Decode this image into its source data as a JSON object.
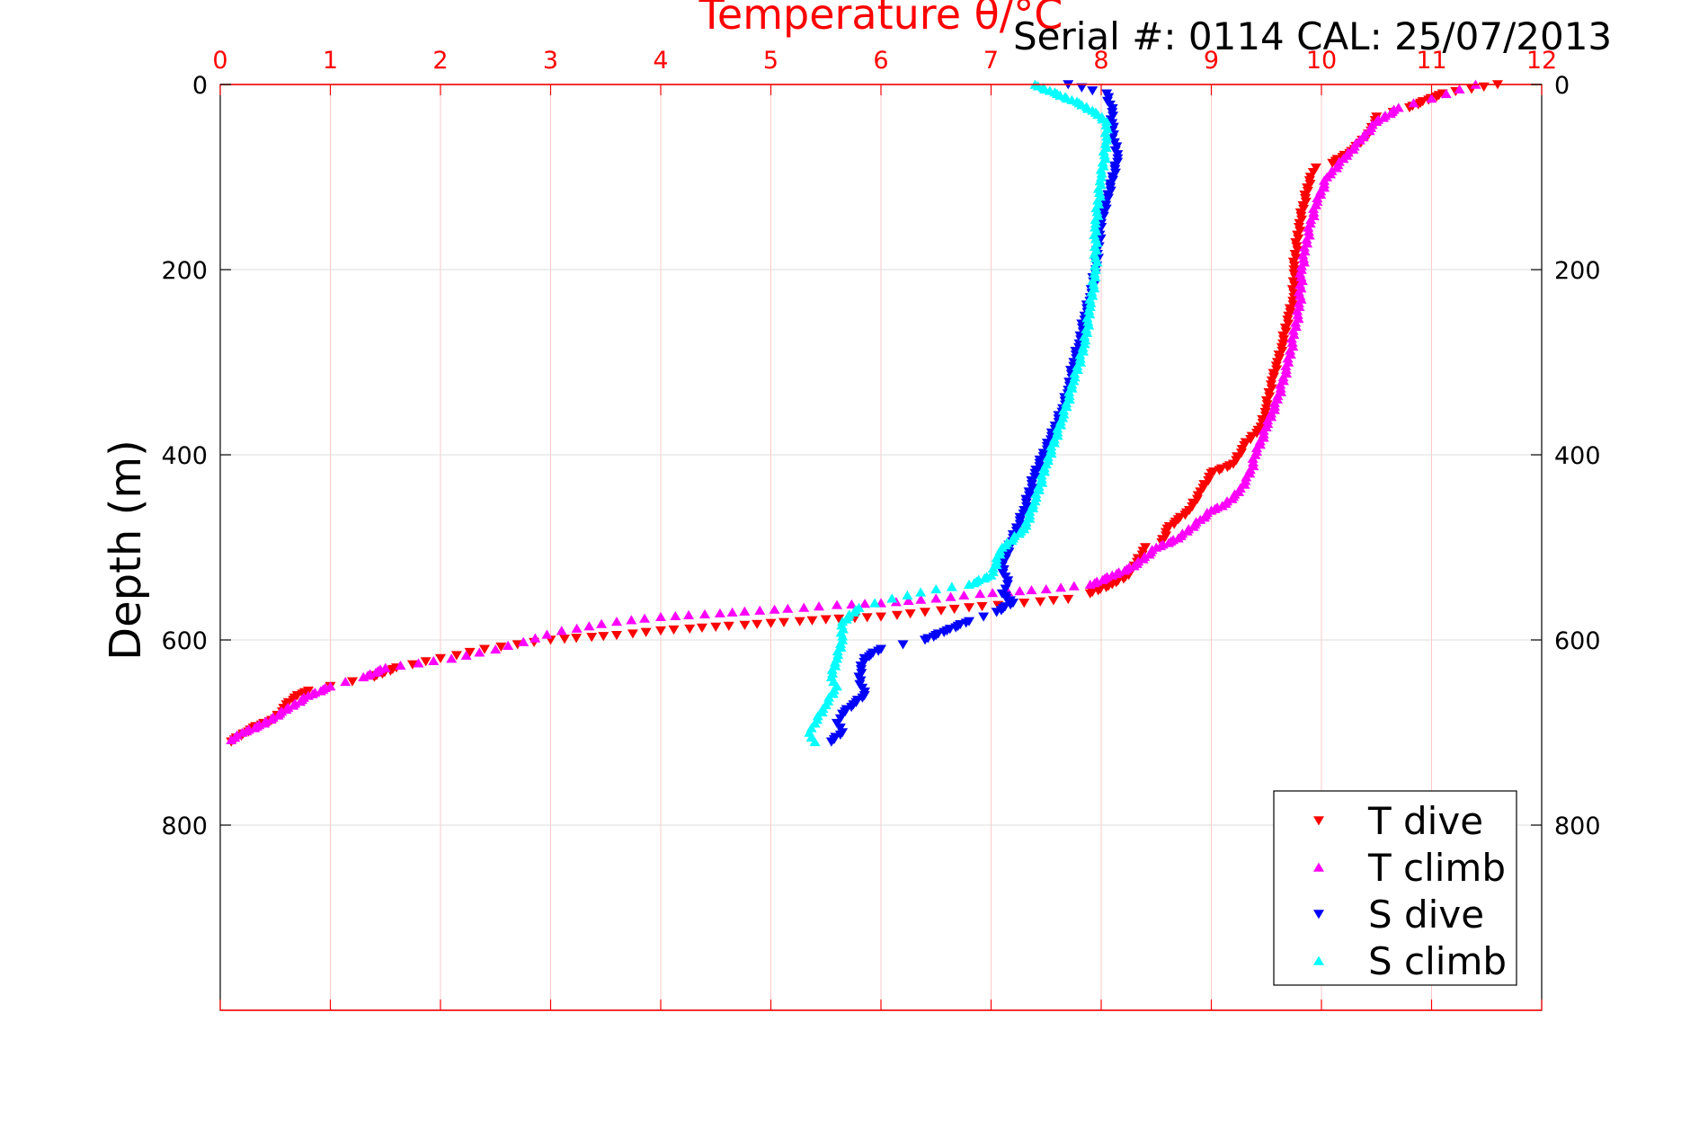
{
  "chart_data": {
    "type": "scatter",
    "title": "Temperature θ/°C",
    "annotation": "Serial #: 0114  CAL: 25/07/2013",
    "xlabel": "Temperature θ/°C",
    "ylabel": "Depth (m)",
    "xlim": [
      0,
      12
    ],
    "ylim": [
      1000,
      0
    ],
    "x_ticks": [
      0,
      1,
      2,
      3,
      4,
      5,
      6,
      7,
      8,
      9,
      10,
      11,
      12
    ],
    "y_ticks": [
      0,
      200,
      400,
      600,
      800
    ],
    "grid": true,
    "legend_position": "bottom-right",
    "colors": {
      "axis_top": "#ff0000",
      "axis_left": "#000000",
      "grid_vertical": "#ffc8c8",
      "grid_horizontal": "#dcdcdc"
    },
    "series": [
      {
        "name": "T dive",
        "color": "#ff0000",
        "marker": "triangle-down",
        "x": [
          11.6,
          11.1,
          10.8,
          10.5,
          10.45,
          10.3,
          10.1,
          9.95,
          9.9,
          9.8,
          9.75,
          9.75,
          9.7,
          9.65,
          9.6,
          9.55,
          9.5,
          9.45,
          9.3,
          9.2,
          9.0,
          8.9,
          8.8,
          8.7,
          8.6,
          8.55,
          8.4,
          8.3,
          8.25,
          8.1,
          7.9,
          7.7,
          7.3,
          6.8,
          6.4,
          6.0,
          5.5,
          5.0,
          4.5,
          4.0,
          3.6,
          3.0,
          2.7,
          2.4,
          2.0,
          1.6,
          1.4,
          1.2,
          1.0,
          0.8,
          0.7,
          0.6,
          0.5,
          0.3,
          0.1
        ],
        "y": [
          0,
          10,
          25,
          35,
          50,
          70,
          85,
          90,
          100,
          150,
          200,
          230,
          250,
          280,
          300,
          320,
          350,
          370,
          390,
          410,
          420,
          440,
          460,
          470,
          480,
          495,
          500,
          520,
          530,
          540,
          550,
          556,
          560,
          565,
          570,
          575,
          578,
          582,
          586,
          590,
          595,
          600,
          605,
          610,
          620,
          630,
          640,
          645,
          650,
          655,
          660,
          670,
          685,
          695,
          710
        ]
      },
      {
        "name": "T climb",
        "color": "#ff00ff",
        "marker": "triangle-up",
        "x": [
          11.4,
          11.0,
          10.7,
          10.5,
          10.35,
          10.2,
          10.05,
          9.95,
          9.9,
          9.85,
          9.82,
          9.8,
          9.75,
          9.7,
          9.6,
          9.5,
          9.4,
          9.35,
          9.25,
          9.1,
          9.0,
          8.9,
          8.7,
          8.5,
          8.3,
          8.1,
          7.9,
          7.5,
          6.9,
          6.5,
          6.0,
          5.6,
          5.3,
          4.9,
          4.4,
          4.0,
          3.6,
          3.1,
          2.5,
          2.1,
          1.8,
          1.5,
          1.3,
          1.0,
          0.8,
          0.6,
          0.4,
          0.2,
          0.1
        ],
        "y": [
          0,
          15,
          25,
          40,
          60,
          80,
          100,
          130,
          150,
          180,
          200,
          240,
          270,
          300,
          340,
          370,
          400,
          420,
          440,
          455,
          460,
          470,
          490,
          500,
          520,
          530,
          540,
          545,
          550,
          555,
          560,
          562,
          565,
          568,
          572,
          575,
          580,
          590,
          610,
          620,
          625,
          630,
          640,
          650,
          660,
          675,
          690,
          700,
          708
        ]
      },
      {
        "name": "S dive",
        "color": "#0000ff",
        "marker": "triangle-down",
        "x": [
          7.7,
          8.05,
          8.1,
          8.1,
          8.15,
          8.0,
          7.95,
          7.9,
          7.85,
          7.8,
          7.75,
          7.7,
          7.65,
          7.55,
          7.4,
          7.3,
          7.2,
          7.1,
          7.15,
          7.1,
          7.2,
          7.05,
          6.8,
          6.6,
          6.4,
          6.2,
          6.0,
          5.85,
          5.8,
          5.85,
          5.75,
          5.65,
          5.6,
          5.65,
          5.55
        ],
        "y": [
          0,
          10,
          30,
          50,
          80,
          150,
          200,
          230,
          250,
          280,
          300,
          330,
          350,
          380,
          420,
          460,
          490,
          520,
          540,
          550,
          560,
          570,
          580,
          590,
          600,
          605,
          610,
          620,
          640,
          660,
          670,
          680,
          690,
          700,
          710
        ]
      },
      {
        "name": "S climb",
        "color": "#00ffff",
        "marker": "triangle-up",
        "x": [
          7.4,
          7.6,
          7.8,
          7.95,
          8.05,
          8.05,
          8.0,
          7.95,
          7.95,
          7.9,
          7.85,
          7.75,
          7.65,
          7.5,
          7.4,
          7.3,
          7.1,
          7.0,
          6.8,
          6.5,
          6.1,
          5.8,
          5.65,
          5.65,
          5.6,
          5.55,
          5.6,
          5.5,
          5.4,
          5.35,
          5.4
        ],
        "y": [
          0,
          10,
          20,
          30,
          40,
          60,
          100,
          150,
          200,
          240,
          280,
          320,
          360,
          410,
          450,
          480,
          500,
          530,
          540,
          545,
          555,
          565,
          580,
          600,
          620,
          640,
          650,
          670,
          690,
          700,
          710
        ]
      }
    ]
  }
}
